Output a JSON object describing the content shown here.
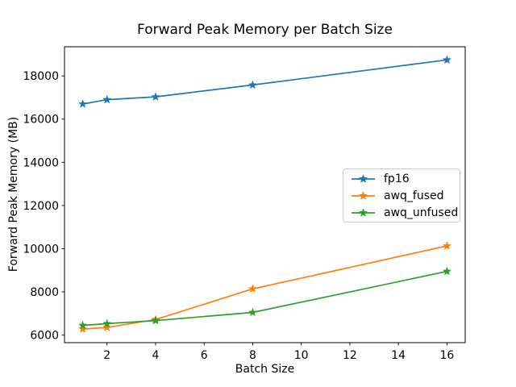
{
  "chart_data": {
    "type": "line",
    "title": "Forward Peak Memory per Batch Size",
    "xlabel": "Batch Size",
    "ylabel": "Forward Peak Memory (MB)",
    "x": [
      1,
      2,
      4,
      8,
      16
    ],
    "xticks": [
      2,
      4,
      6,
      8,
      10,
      12,
      14,
      16
    ],
    "yticks": [
      6000,
      8000,
      10000,
      12000,
      14000,
      16000,
      18000
    ],
    "xlim": [
      0.25,
      16.75
    ],
    "ylim": [
      5650,
      19350
    ],
    "grid": false,
    "marker": "star",
    "background_color": "#ffffff",
    "axis_color": "#000000",
    "legend": {
      "position": "center-right",
      "border_color": "#cccccc",
      "entries": [
        "fp16",
        "awq_fused",
        "awq_unfused"
      ]
    },
    "series": [
      {
        "name": "fp16",
        "color": "#1f77b4",
        "values": [
          16700,
          16900,
          17030,
          17580,
          18740
        ]
      },
      {
        "name": "awq_fused",
        "color": "#ff7f0e",
        "values": [
          6280,
          6350,
          6720,
          8140,
          10130
        ]
      },
      {
        "name": "awq_unfused",
        "color": "#2ca02c",
        "values": [
          6450,
          6530,
          6670,
          7050,
          8950
        ]
      }
    ]
  }
}
